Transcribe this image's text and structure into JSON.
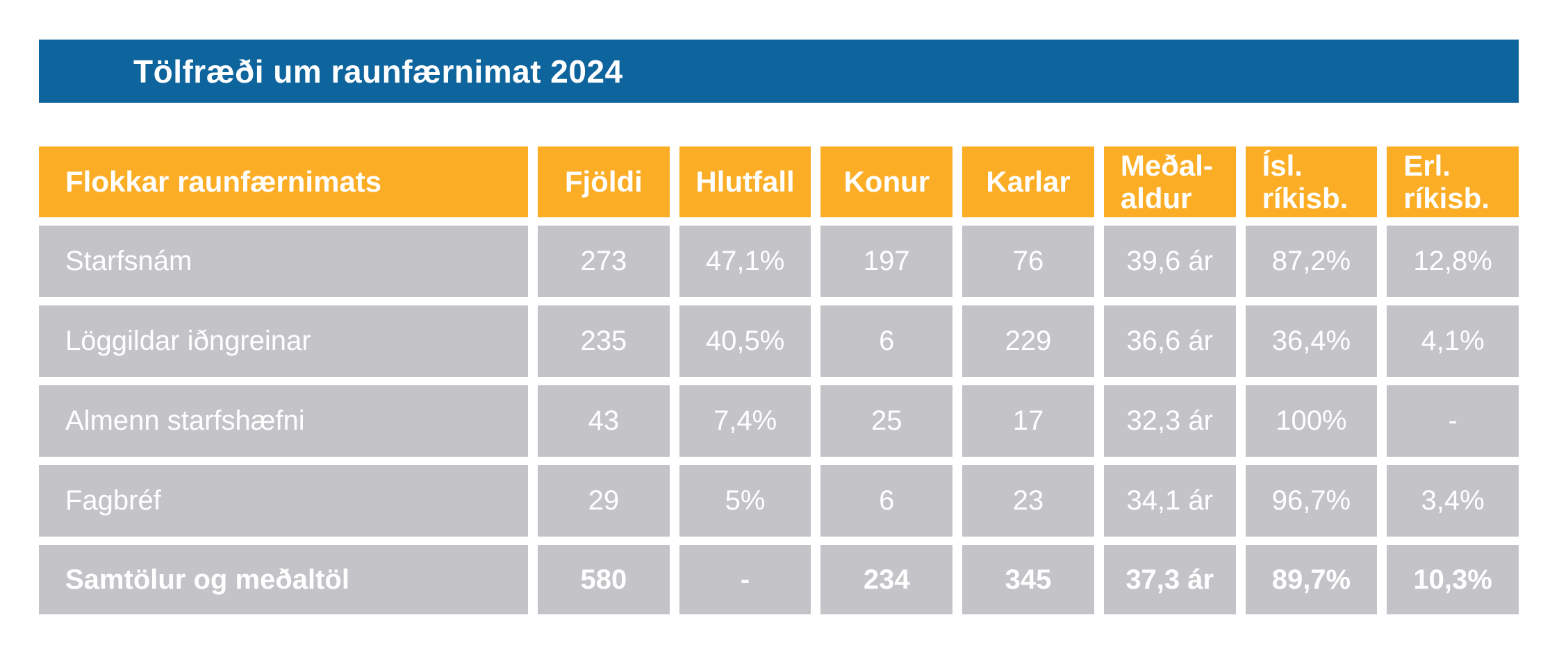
{
  "chart_data": {
    "type": "table",
    "title": "Tölfræði um raunfærnimat 2024",
    "columns": [
      "Flokkar raunfærnimats",
      "Fjöldi",
      "Hlutfall",
      "Konur",
      "Karlar",
      "Meðal-\naldur",
      "Ísl.\nríkisb.",
      "Erl.\nríkisb."
    ],
    "rows": [
      [
        "Starfsnám",
        "273",
        "47,1%",
        "197",
        "76",
        "39,6 ár",
        "87,2%",
        "12,8%"
      ],
      [
        "Löggildar iðngreinar",
        "235",
        "40,5%",
        "6",
        "229",
        "36,6 ár",
        "36,4%",
        "4,1%"
      ],
      [
        "Almenn starfshæfni",
        "43",
        "7,4%",
        "25",
        "17",
        "32,3 ár",
        "100%",
        "-"
      ],
      [
        "Fagbréf",
        "29",
        "5%",
        "6",
        "23",
        "34,1 ár",
        "96,7%",
        "3,4%"
      ]
    ],
    "total_row": [
      "Samtölur og meðaltöl",
      "580",
      "-",
      "234",
      "345",
      "37,3 ár",
      "89,7%",
      "10,3%"
    ],
    "colors": {
      "title_bar_blue": "#0e649c",
      "header_orange": "#fbad26",
      "row_gray": "#c4c4c8",
      "text_white": "#ffffff",
      "background": "#ffffff"
    },
    "layout": {
      "legend": "none",
      "grid": "off"
    }
  }
}
